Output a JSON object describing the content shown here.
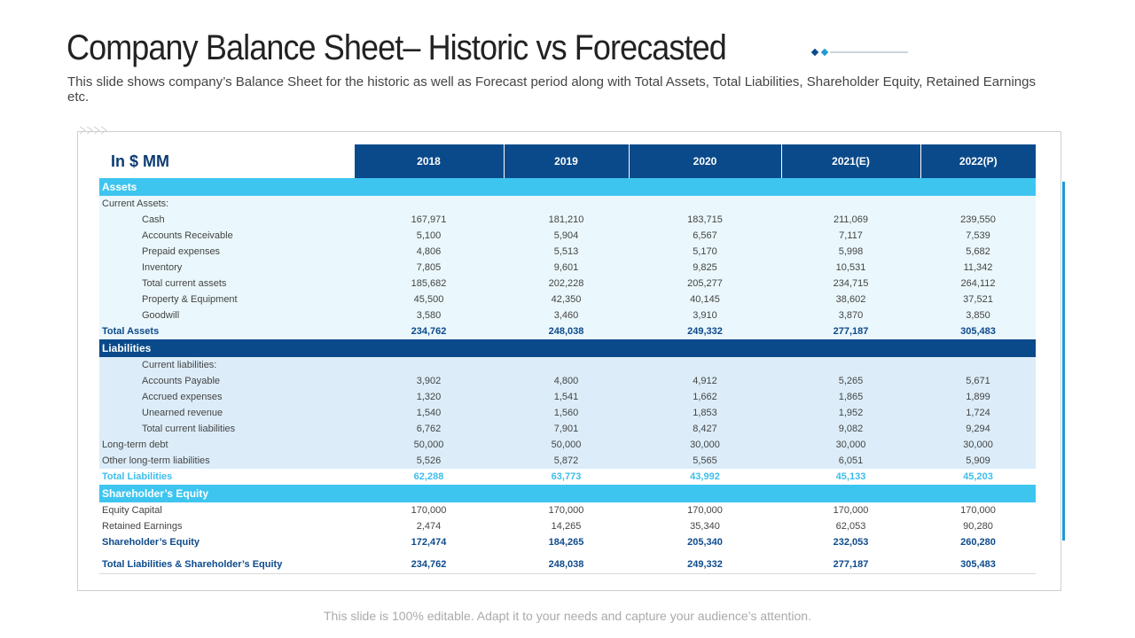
{
  "title": "Company Balance Sheet– Historic vs Forecasted",
  "subtitle": "This slide shows company’s Balance Sheet for the historic as well as Forecast period along with Total Assets, Total Liabilities, Shareholder Equity, Retained Earnings etc.",
  "table": {
    "unit_label": "In $ MM",
    "years": [
      "2018",
      "2019",
      "2020",
      "2021(E)",
      "2022(P)"
    ],
    "sections": {
      "assets": "Assets",
      "liabilities": "Liabilities",
      "equity": "Shareholder’s Equity"
    },
    "rows": {
      "current_assets": {
        "label": "Current Assets:"
      },
      "cash": {
        "label": "Cash",
        "values": [
          "167,971",
          "181,210",
          "183,715",
          "211,069",
          "239,550"
        ]
      },
      "accounts_receivable": {
        "label": "Accounts Receivable",
        "values": [
          "5,100",
          "5,904",
          "6,567",
          "7,117",
          "7,539"
        ]
      },
      "prepaid_expenses": {
        "label": "Prepaid expenses",
        "values": [
          "4,806",
          "5,513",
          "5,170",
          "5,998",
          "5,682"
        ]
      },
      "inventory": {
        "label": "Inventory",
        "values": [
          "7,805",
          "9,601",
          "9,825",
          "10,531",
          "11,342"
        ]
      },
      "total_current_assets": {
        "label": "Total current assets",
        "values": [
          "185,682",
          "202,228",
          "205,277",
          "234,715",
          "264,112"
        ]
      },
      "property_equipment": {
        "label": "Property & Equipment",
        "values": [
          "45,500",
          "42,350",
          "40,145",
          "38,602",
          "37,521"
        ]
      },
      "goodwill": {
        "label": "Goodwill",
        "values": [
          "3,580",
          "3,460",
          "3,910",
          "3,870",
          "3,850"
        ]
      },
      "total_assets": {
        "label": "Total Assets",
        "values": [
          "234,762",
          "248,038",
          "249,332",
          "277,187",
          "305,483"
        ]
      },
      "current_liabilities": {
        "label": "Current liabilities:"
      },
      "accounts_payable": {
        "label": "Accounts Payable",
        "values": [
          "3,902",
          "4,800",
          "4,912",
          "5,265",
          "5,671"
        ]
      },
      "accrued_expenses": {
        "label": "Accrued expenses",
        "values": [
          "1,320",
          "1,541",
          "1,662",
          "1,865",
          "1,899"
        ]
      },
      "unearned_revenue": {
        "label": "Unearned revenue",
        "values": [
          "1,540",
          "1,560",
          "1,853",
          "1,952",
          "1,724"
        ]
      },
      "total_current_liabilities": {
        "label": "Total current liabilities",
        "values": [
          "6,762",
          "7,901",
          "8,427",
          "9,082",
          "9,294"
        ]
      },
      "long_term_debt": {
        "label": "Long-term debt",
        "values": [
          "50,000",
          "50,000",
          "30,000",
          "30,000",
          "30,000"
        ]
      },
      "other_long_term": {
        "label": "Other long-term liabilities",
        "values": [
          "5,526",
          "5,872",
          "5,565",
          "6,051",
          "5,909"
        ]
      },
      "total_liabilities": {
        "label": "Total Liabilities",
        "values": [
          "62,288",
          "63,773",
          "43,992",
          "45,133",
          "45,203"
        ]
      },
      "equity_capital": {
        "label": "Equity Capital",
        "values": [
          "170,000",
          "170,000",
          "170,000",
          "170,000",
          "170,000"
        ]
      },
      "retained_earnings": {
        "label": "Retained Earnings",
        "values": [
          "2,474",
          "14,265",
          "35,340",
          "62,053",
          "90,280"
        ]
      },
      "shareholders_equity": {
        "label": "Shareholder’s Equity",
        "values": [
          "172,474",
          "184,265",
          "205,340",
          "232,053",
          "260,280"
        ]
      },
      "total_liab_equity": {
        "label": "Total Liabilities & Shareholder’s Equity",
        "values": [
          "234,762",
          "248,038",
          "249,332",
          "277,187",
          "305,483"
        ]
      }
    }
  },
  "footer": "This slide is 100% editable. Adapt it to your needs and capture your audience’s attention.",
  "colors": {
    "dark_blue": "#0a4a8a",
    "light_blue": "#3dc5ef",
    "assets_bg": "#eaf7fc",
    "liabilities_bg": "#dcedf9"
  }
}
